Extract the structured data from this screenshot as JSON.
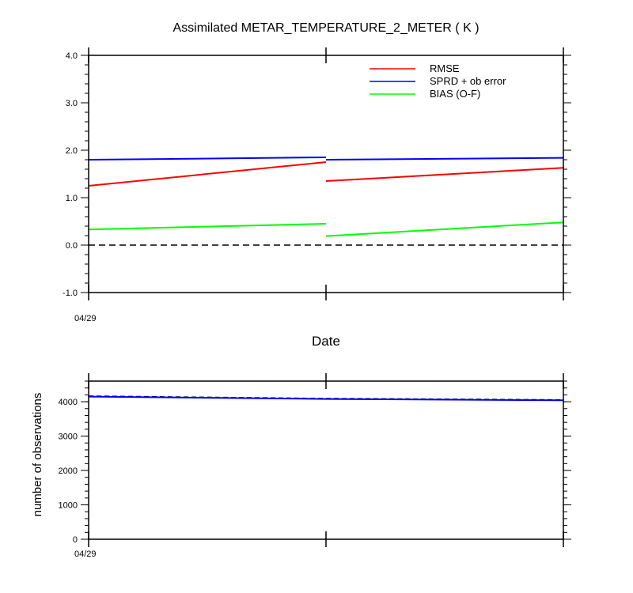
{
  "chart_data": [
    {
      "type": "line",
      "title": "Assimilated METAR_TEMPERATURE_2_METER ( K )",
      "xlabel": "Date",
      "ylabel": "",
      "ylim": [
        -1.0,
        4.0
      ],
      "yticks": [
        "-1.0",
        "0.0",
        "1.0",
        "2.0",
        "3.0",
        "4.0"
      ],
      "xtick_labels": [
        "04/29"
      ],
      "legend_position": "top-right",
      "zero_line": true,
      "series": [
        {
          "name": "RMSE",
          "color": "#ff0000",
          "segments": [
            [
              [
                0,
                1.25
              ],
              [
                1,
                1.75
              ]
            ],
            [
              [
                1,
                1.35
              ],
              [
                2,
                1.63
              ]
            ]
          ]
        },
        {
          "name": "SPRD + ob error",
          "color": "#0000ff",
          "segments": [
            [
              [
                0,
                1.8
              ],
              [
                1,
                1.85
              ]
            ],
            [
              [
                1,
                1.8
              ],
              [
                2,
                1.84
              ]
            ]
          ]
        },
        {
          "name": "BIAS (O-F)",
          "color": "#00ff00",
          "segments": [
            [
              [
                0,
                0.33
              ],
              [
                1,
                0.45
              ]
            ],
            [
              [
                1,
                0.19
              ],
              [
                2,
                0.48
              ]
            ]
          ]
        }
      ]
    },
    {
      "type": "line",
      "title": "",
      "xlabel": "",
      "ylabel": "number of observations",
      "ylim": [
        0,
        4600
      ],
      "yticks": [
        "0",
        "1000",
        "2000",
        "3000",
        "4000"
      ],
      "xtick_labels": [
        "04/29"
      ],
      "series": [
        {
          "name": "",
          "color": "#000000",
          "dashed": true,
          "segments": [
            [
              [
                0,
                4160
              ],
              [
                1,
                4090
              ],
              [
                2,
                4050
              ]
            ]
          ]
        },
        {
          "name": "",
          "color": "#0000ff",
          "segments": [
            [
              [
                0,
                4150
              ],
              [
                1,
                4080
              ],
              [
                2,
                4040
              ]
            ]
          ]
        }
      ]
    }
  ]
}
